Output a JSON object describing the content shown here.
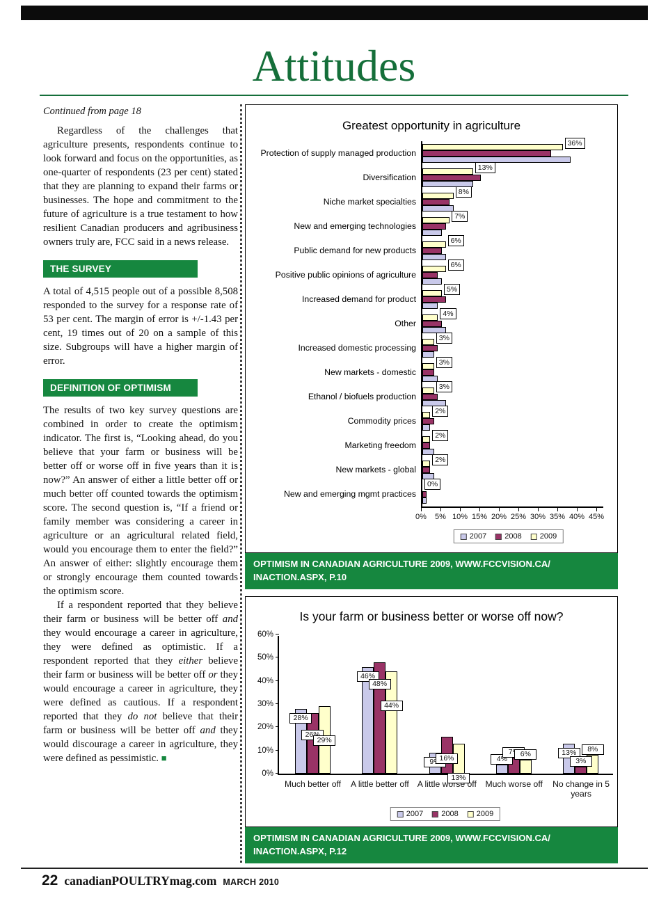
{
  "page": {
    "title": "Attitudes",
    "footer": {
      "page_number": "22",
      "site": "canadianPOULTRYmag.com",
      "issue": "MARCH 2010"
    }
  },
  "article": {
    "continued": "Continued from page 18",
    "para1": "Regardless of the challenges that agriculture presents, respondents continue to look forward and focus on the opportunities, as one-quarter of respondents (23 per cent) stated that they are planning to expand their farms or businesses. The hope and commitment to the future of agriculture is a true testament to how resilient Canadian producers and agribusiness owners truly are, FCC said in a news release.",
    "survey_heading": "THE SURVEY",
    "survey_para": "A total of 4,515 people out of a possible 8,508 responded to the survey for a response rate of 53 per cent. The margin of error is +/-1.43 per cent, 19 times out of 20 on a sample of this size. Subgroups will have a higher margin of error.",
    "optimism_heading": "DEFINITION OF OPTIMISM",
    "optimism_para1": "The results of two key survey questions are combined in order to create the optimism indicator. The first is, “Looking ahead, do you believe that your farm or business will be better off or worse off in five years than it is now?” An answer of either a little better off or much better off counted towards the optimism score. The second question is, “If a friend or family member was considering a career in agriculture or an agricultural related field, would you encourage them to enter the field?” An answer of either: slightly encourage them or strongly encourage them counted towards the optimism score.",
    "optimism_para2_html": "If a respondent reported that they believe their farm or business will be better off <i>and</i> they would encourage a career in agriculture, they were defined as optimistic. If a respondent reported that they <i>either</i> believe their farm or business will be better off <i>or</i> they would encourage a career in agriculture, they were defined as cautious. If a respondent reported that they <i>do not</i> believe that their farm or business will be better off <i>and</i> they would discourage a career in agriculture, they were defined as pessimistic. <span class=\"endmark\">■</span>"
  },
  "captions": {
    "top_line1": "OPTIMISM IN CANADIAN AGRICULTURE 2009, WWW.FCCVISION.CA/",
    "top_line2": "INACTION.ASPX, P.10",
    "bottom_line1": "OPTIMISM IN CANADIAN AGRICULTURE 2009, WWW.FCCVISION.CA/",
    "bottom_line2": "INACTION.ASPX, P.12"
  },
  "colors": {
    "green": "#16873f",
    "title_green": "#156f3a",
    "series": [
      "#c9c9ea",
      "#993366",
      "#ffffcb"
    ],
    "bar_border": "#000000"
  },
  "chart_data": [
    {
      "type": "bar",
      "orientation": "horizontal",
      "title": "Greatest opportunity in agriculture",
      "categories": [
        "Protection of supply managed production",
        "Diversification",
        "Niche market specialties",
        "New and emerging technologies",
        "Public demand for new products",
        "Positive public opinions of agriculture",
        "Increased demand for product",
        "Other",
        "Increased domestic processing",
        "New markets - domestic",
        "Ethanol / biofuels production",
        "Commodity prices",
        "Marketing freedom",
        "New markets - global",
        "New and emerging mgmt practices"
      ],
      "series": [
        {
          "name": "2007",
          "values": [
            38,
            13,
            8,
            5,
            6,
            5,
            4,
            6,
            3,
            4,
            6,
            2,
            3,
            3,
            1
          ]
        },
        {
          "name": "2008",
          "values": [
            33,
            15,
            7,
            6,
            5,
            4,
            6,
            5,
            4,
            3,
            4,
            3,
            2,
            2,
            1
          ]
        },
        {
          "name": "2009",
          "values": [
            36,
            13,
            8,
            7,
            6,
            6,
            5,
            4,
            3,
            3,
            3,
            2,
            2,
            2,
            0
          ]
        }
      ],
      "labels_series": "2009",
      "labels": [
        "36%",
        "13%",
        "8%",
        "7%",
        "6%",
        "6%",
        "5%",
        "4%",
        "3%",
        "3%",
        "3%",
        "2%",
        "2%",
        "2%",
        "0%"
      ],
      "x_ticks": [
        "0%",
        "5%",
        "10%",
        "15%",
        "20%",
        "25%",
        "30%",
        "35%",
        "40%",
        "45%"
      ],
      "xlim": [
        0,
        45
      ],
      "grid": false,
      "legend": [
        "2007",
        "2008",
        "2009"
      ],
      "legend_position": "bottom"
    },
    {
      "type": "bar",
      "orientation": "vertical",
      "title": "Is your farm or business better or worse off now?",
      "categories": [
        "Much better off",
        "A little better off",
        "A little worse off",
        "Much worse off",
        "No change in 5 years"
      ],
      "series": [
        {
          "name": "2007",
          "values": [
            28,
            46,
            9,
            4,
            13
          ]
        },
        {
          "name": "2008",
          "values": [
            26,
            48,
            16,
            7,
            3
          ]
        },
        {
          "name": "2009",
          "values": [
            29,
            44,
            13,
            6,
            8
          ]
        }
      ],
      "y_ticks": [
        "0%",
        "10%",
        "20%",
        "30%",
        "40%",
        "50%",
        "60%"
      ],
      "ylim": [
        0,
        60
      ],
      "grid": false,
      "legend": [
        "2007",
        "2008",
        "2009"
      ],
      "legend_position": "bottom"
    }
  ]
}
